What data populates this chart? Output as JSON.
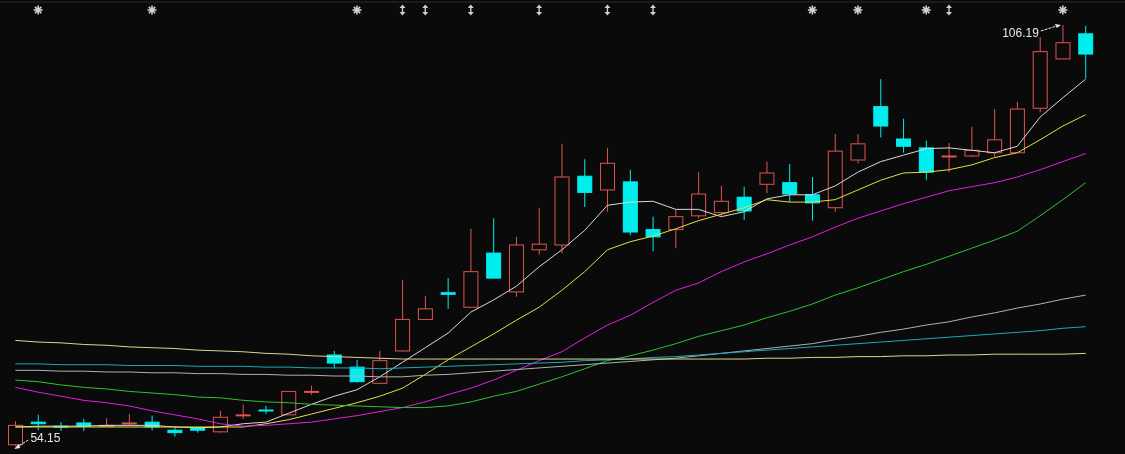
{
  "chart_data": {
    "type": "candlestick",
    "categories": [
      null,
      null,
      null,
      null,
      null,
      null,
      null,
      null,
      null,
      null,
      null,
      null,
      null,
      null,
      null,
      null,
      null,
      null,
      null,
      null,
      null,
      null,
      null,
      null,
      null,
      null,
      null,
      null,
      null,
      null,
      null,
      null,
      null,
      null,
      null,
      null,
      null,
      null,
      null,
      null,
      null,
      null,
      null,
      null,
      null,
      null,
      null,
      null
    ],
    "ohlc": [
      [
        54.3,
        57.2,
        54.15,
        56.7
      ],
      [
        57.1,
        58.0,
        56.1,
        56.9
      ],
      [
        56.6,
        57.1,
        56.0,
        56.5
      ],
      [
        57.0,
        57.5,
        56.0,
        56.6
      ],
      [
        56.6,
        57.6,
        56.5,
        56.7
      ],
      [
        56.9,
        58.1,
        56.7,
        57.0
      ],
      [
        57.1,
        57.9,
        56.1,
        56.5
      ],
      [
        56.1,
        56.5,
        55.3,
        55.8
      ],
      [
        56.4,
        56.5,
        55.8,
        56.1
      ],
      [
        55.9,
        58.5,
        55.8,
        57.7
      ],
      [
        57.9,
        59.3,
        57.5,
        58.0
      ],
      [
        58.6,
        59.1,
        58.1,
        58.5
      ],
      [
        58.0,
        60.9,
        58.0,
        60.9
      ],
      [
        60.8,
        61.6,
        60.5,
        60.9
      ],
      [
        65.4,
        65.9,
        63.7,
        64.4
      ],
      [
        63.9,
        64.8,
        62.0,
        62.1
      ],
      [
        61.9,
        65.9,
        61.8,
        64.7
      ],
      [
        65.9,
        74.7,
        65.8,
        69.8
      ],
      [
        69.8,
        72.7,
        69.8,
        71.1
      ],
      [
        73.1,
        74.9,
        71.1,
        72.9
      ],
      [
        71.3,
        81.0,
        71.3,
        75.7
      ],
      [
        78.0,
        82.3,
        74.9,
        74.9
      ],
      [
        73.2,
        80.0,
        72.6,
        79.0
      ],
      [
        78.4,
        83.6,
        77.8,
        79.1
      ],
      [
        79.0,
        91.5,
        78.0,
        87.4
      ],
      [
        87.5,
        89.6,
        83.7,
        85.5
      ],
      [
        85.8,
        91.0,
        83.1,
        89.1
      ],
      [
        86.8,
        88.3,
        80.2,
        80.6
      ],
      [
        80.9,
        82.5,
        78.2,
        80.0
      ],
      [
        80.9,
        83.4,
        78.6,
        82.5
      ],
      [
        82.6,
        88.0,
        82.3,
        85.3
      ],
      [
        83.0,
        86.3,
        82.6,
        84.4
      ],
      [
        84.9,
        86.2,
        82.1,
        83.2
      ],
      [
        86.5,
        89.3,
        85.4,
        87.9
      ],
      [
        86.7,
        89.0,
        84.3,
        85.3
      ],
      [
        85.2,
        87.4,
        82.0,
        84.2
      ],
      [
        83.6,
        92.7,
        83.1,
        90.6
      ],
      [
        89.5,
        92.7,
        89.1,
        91.5
      ],
      [
        96.1,
        99.5,
        92.3,
        93.7
      ],
      [
        92.1,
        94.6,
        90.4,
        91.2
      ],
      [
        91.0,
        91.9,
        87.0,
        88.0
      ],
      [
        89.9,
        91.6,
        88.0,
        90.0
      ],
      [
        90.0,
        93.6,
        89.9,
        90.7
      ],
      [
        90.4,
        95.8,
        89.9,
        92.0
      ],
      [
        90.4,
        96.7,
        90.4,
        95.8
      ],
      [
        95.9,
        104.7,
        95.4,
        102.9
      ],
      [
        102.0,
        106.19,
        102.0,
        104.0
      ],
      [
        105.1,
        106.1,
        99.6,
        102.6
      ]
    ],
    "colors": [
      "#e2544e",
      "#00eeee",
      "#00eeee",
      "#00eeee",
      "#e2544e",
      "#e2544e",
      "#00eeee",
      "#00eeee",
      "#00eeee",
      "#e2544e",
      "#e2544e",
      "#00eeee",
      "#e2544e",
      "#e2544e",
      "#00eeee",
      "#00eeee",
      "#e2544e",
      "#e2544e",
      "#e2544e",
      "#00eeee",
      "#e2544e",
      "#00eeee",
      "#e2544e",
      "#e2544e",
      "#e2544e",
      "#00eeee",
      "#e2544e",
      "#00eeee",
      "#00eeee",
      "#e2544e",
      "#e2544e",
      "#e2544e",
      "#00eeee",
      "#e2544e",
      "#00eeee",
      "#00eeee",
      "#e2544e",
      "#e2544e",
      "#00eeee",
      "#00eeee",
      "#00eeee",
      "#e2544e",
      "#e2544e",
      "#e2544e",
      "#e2544e",
      "#e2544e",
      "#e2544e",
      "#00eeee"
    ],
    "series": [
      {
        "type": "line",
        "color": "#d8d8d8",
        "values": [
          56.5,
          56.6,
          56.6,
          56.6,
          56.7,
          56.7,
          56.7,
          56.5,
          56.4,
          56.5,
          56.9,
          57.1,
          58.2,
          59.3,
          60.3,
          61.1,
          62.7,
          64.5,
          66.3,
          68.1,
          70.7,
          72.2,
          73.9,
          76.3,
          78.4,
          80.8,
          83.9,
          84.3,
          84.4,
          83.4,
          83.4,
          82.5,
          83.1,
          84.7,
          85.2,
          85.2,
          86.3,
          88.0,
          89.3,
          90.1,
          90.9,
          91.0,
          90.7,
          90.4,
          91.2,
          94.8,
          97.2,
          99.5
        ]
      },
      {
        "type": "line",
        "color": "#e0e040",
        "values": [
          56.5,
          56.5,
          56.5,
          56.5,
          56.5,
          56.5,
          56.5,
          56.5,
          56.5,
          56.5,
          56.5,
          56.9,
          57.4,
          58.1,
          58.8,
          59.5,
          60.3,
          61.3,
          63.0,
          64.8,
          66.4,
          68.0,
          69.7,
          71.3,
          73.4,
          75.7,
          78.4,
          79.4,
          80.1,
          81.0,
          82.0,
          82.8,
          83.6,
          84.6,
          84.3,
          84.3,
          84.6,
          85.8,
          87.0,
          87.9,
          88.0,
          88.3,
          88.9,
          89.8,
          90.4,
          92.0,
          93.7,
          95.1
        ]
      },
      {
        "type": "line",
        "color": "#e020e0",
        "values": [
          61.4,
          60.8,
          60.3,
          59.8,
          59.5,
          59.1,
          58.5,
          58.0,
          57.5,
          56.9,
          56.6,
          56.7,
          56.9,
          57.1,
          57.5,
          57.9,
          58.4,
          58.9,
          59.6,
          60.5,
          61.3,
          62.3,
          63.5,
          64.7,
          65.8,
          67.5,
          69.1,
          70.3,
          71.9,
          73.4,
          74.3,
          75.7,
          76.9,
          77.9,
          79.0,
          80.0,
          81.2,
          82.3,
          83.2,
          84.1,
          84.9,
          85.7,
          86.2,
          86.7,
          87.4,
          88.3,
          89.3,
          90.3
        ]
      },
      {
        "type": "line",
        "color": "#30c030",
        "values": [
          62.3,
          62.1,
          61.7,
          61.4,
          61.2,
          60.9,
          60.7,
          60.5,
          60.2,
          60.1,
          59.8,
          59.6,
          59.5,
          59.3,
          59.2,
          59.1,
          59.0,
          58.9,
          58.9,
          59.1,
          59.6,
          60.3,
          60.9,
          61.8,
          62.7,
          63.7,
          64.7,
          65.3,
          66.0,
          66.8,
          67.7,
          68.4,
          69.1,
          70.0,
          70.8,
          71.7,
          72.8,
          73.7,
          74.7,
          75.7,
          76.6,
          77.6,
          78.6,
          79.6,
          80.7,
          82.6,
          84.6,
          86.7
        ]
      },
      {
        "type": "line",
        "color": "#b0b0b0",
        "values": [
          63.5,
          63.5,
          63.4,
          63.4,
          63.3,
          63.3,
          63.2,
          63.2,
          63.1,
          63.1,
          63.0,
          63.0,
          62.9,
          62.9,
          62.8,
          62.8,
          62.7,
          62.7,
          62.9,
          63.0,
          63.2,
          63.4,
          63.6,
          63.8,
          64.0,
          64.2,
          64.4,
          64.6,
          64.8,
          65.0,
          65.3,
          65.6,
          65.9,
          66.2,
          66.5,
          66.8,
          67.3,
          67.7,
          68.2,
          68.6,
          69.1,
          69.5,
          70.1,
          70.6,
          71.2,
          71.7,
          72.3,
          72.8
        ]
      },
      {
        "type": "line",
        "color": "#20a8b8",
        "values": [
          64.3,
          64.3,
          64.2,
          64.2,
          64.2,
          64.1,
          64.1,
          64.1,
          64.0,
          64.0,
          64.0,
          63.9,
          63.9,
          63.8,
          63.8,
          63.8,
          63.7,
          63.8,
          63.9,
          64.0,
          64.1,
          64.2,
          64.3,
          64.4,
          64.5,
          64.7,
          64.8,
          64.9,
          65.1,
          65.2,
          65.4,
          65.6,
          65.8,
          66.0,
          66.2,
          66.4,
          66.6,
          66.8,
          67.0,
          67.2,
          67.4,
          67.6,
          67.8,
          68.0,
          68.2,
          68.4,
          68.7,
          68.9
        ]
      },
      {
        "type": "line",
        "color": "#d8d890",
        "values": [
          67.2,
          67.0,
          66.9,
          66.7,
          66.6,
          66.4,
          66.3,
          66.2,
          66.0,
          65.9,
          65.8,
          65.6,
          65.5,
          65.3,
          65.2,
          65.1,
          65.0,
          64.9,
          64.9,
          64.9,
          64.9,
          64.9,
          64.9,
          64.9,
          64.9,
          64.9,
          64.9,
          64.9,
          64.9,
          64.9,
          64.9,
          64.9,
          64.9,
          65.0,
          65.0,
          65.1,
          65.1,
          65.2,
          65.2,
          65.3,
          65.3,
          65.4,
          65.4,
          65.5,
          65.5,
          65.5,
          65.5,
          65.6
        ]
      }
    ],
    "annotations": [
      "106.19",
      "54.15"
    ],
    "tick_labels": false
  }
}
